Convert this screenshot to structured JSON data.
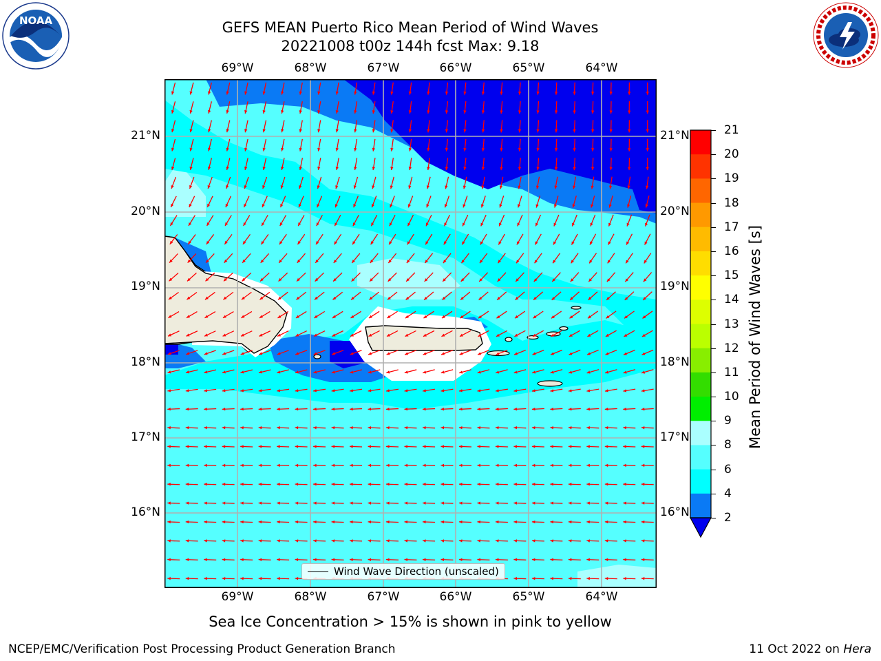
{
  "header": {
    "title": "GEFS MEAN Puerto Rico Mean Period of Wind Waves",
    "subtitle": "20221008 t00z 144h fcst   Max: 9.18"
  },
  "logos": {
    "left_text": "NOAA",
    "left_ring_text": "NATIONAL OCEANIC AND ATMOSPHERIC ADMINISTRATION · U.S. DEPARTMENT OF COMMERCE",
    "right_ring_text": "NATIONAL WEATHER SERVICE"
  },
  "map": {
    "lon_ticks": [
      "69°W",
      "68°W",
      "67°W",
      "66°W",
      "65°W",
      "64°W"
    ],
    "lat_ticks": [
      "21°N",
      "20°N",
      "19°N",
      "18°N",
      "17°N",
      "16°N"
    ],
    "legend_label": "Wind Wave Direction (unscaled)",
    "field_colors": {
      "2-4": "#0a7af5",
      "4-6": "#00ffff",
      "6-8": "#55ffff",
      "8-9": "#aaffff",
      "below-2": "#0000ee",
      "land": "#eeecdd",
      "arrow": "#ff0000"
    }
  },
  "colorbar": {
    "title": "Mean Period of Wind Waves [s]",
    "ticks": [
      "2",
      "4",
      "6",
      "8",
      "9",
      "10",
      "11",
      "12",
      "13",
      "14",
      "15",
      "16",
      "17",
      "18",
      "19",
      "20",
      "21"
    ],
    "colors": [
      "#0a7af5",
      "#00ffff",
      "#55ffff",
      "#aaffff",
      "#55ff88",
      "#00ee00",
      "#33dd00",
      "#88ee00",
      "#bbff00",
      "#ddff00",
      "#ffff00",
      "#ffdd00",
      "#ffbb00",
      "#ff9900",
      "#ff6600",
      "#ff3300",
      "#ff0000"
    ]
  },
  "footer": {
    "note": "Sea Ice Concentration > 15% is shown in pink to yellow",
    "credit_left": "NCEP/EMC/Verification Post Processing Product Generation Branch",
    "credit_right_prefix": "11 Oct 2022 on ",
    "credit_right_host": "Hera"
  }
}
